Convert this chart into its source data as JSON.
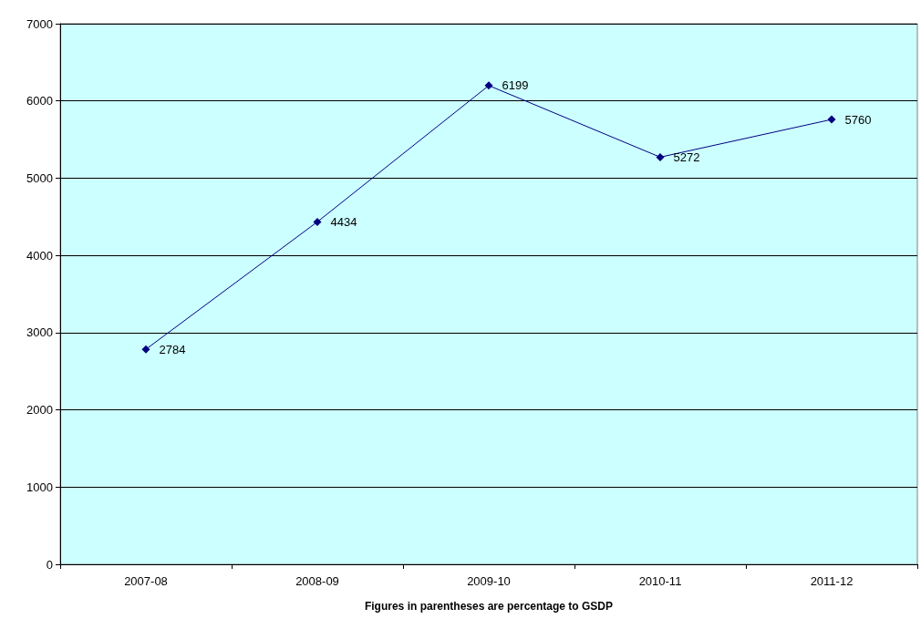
{
  "chart_data": {
    "type": "line",
    "xlabel": "Figures in parentheses are percentage to GSDP",
    "categories": [
      "2007-08",
      "2008-09",
      "2009-10",
      "2010-11",
      "2011-12"
    ],
    "series": [
      {
        "color": "#000080",
        "values": [
          2784,
          4434,
          6199,
          5272,
          5760
        ]
      }
    ],
    "ylim": [
      0,
      7000
    ],
    "yticks": [
      0,
      1000,
      2000,
      3000,
      4000,
      5000,
      6000,
      7000
    ],
    "grid": "y",
    "marker": "diamond",
    "line_style": "solid",
    "data_labels": true
  }
}
